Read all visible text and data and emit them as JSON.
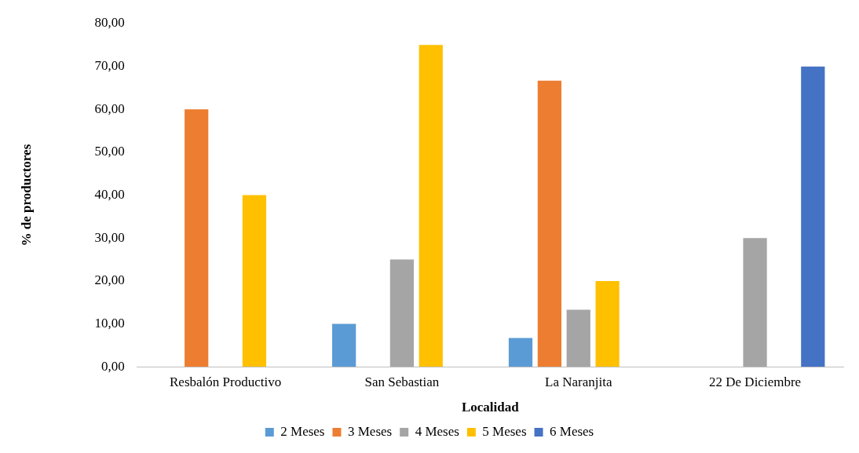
{
  "chart_data": {
    "type": "bar",
    "xlabel": "Localidad",
    "ylabel": "% de productores",
    "categories": [
      "Resbalón Productivo",
      "San Sebastian",
      "La Naranjita",
      "22 De Diciembre"
    ],
    "series": [
      {
        "name": "2 Meses",
        "color": "#5b9bd5",
        "values": [
          0,
          10,
          6.7,
          0
        ]
      },
      {
        "name": "3 Meses",
        "color": "#ed7d31",
        "values": [
          60,
          0,
          66.7,
          0
        ]
      },
      {
        "name": "4 Meses",
        "color": "#a5a5a5",
        "values": [
          0,
          25,
          13.3,
          30
        ]
      },
      {
        "name": "5 Meses",
        "color": "#ffc000",
        "values": [
          40,
          75,
          20,
          0
        ]
      },
      {
        "name": "6 Meses",
        "color": "#4472c4",
        "values": [
          0,
          0,
          0,
          70
        ]
      }
    ],
    "ylim": [
      0,
      80
    ],
    "yticks": [
      {
        "value": 0,
        "label": "0,00"
      },
      {
        "value": 10,
        "label": "10,00"
      },
      {
        "value": 20,
        "label": "20,00"
      },
      {
        "value": 30,
        "label": "30,00"
      },
      {
        "value": 40,
        "label": "40,00"
      },
      {
        "value": 50,
        "label": "50,00"
      },
      {
        "value": 60,
        "label": "60,00"
      },
      {
        "value": 70,
        "label": "70,00"
      },
      {
        "value": 80,
        "label": "80,00"
      }
    ],
    "grid": false,
    "legend": "bottom"
  }
}
